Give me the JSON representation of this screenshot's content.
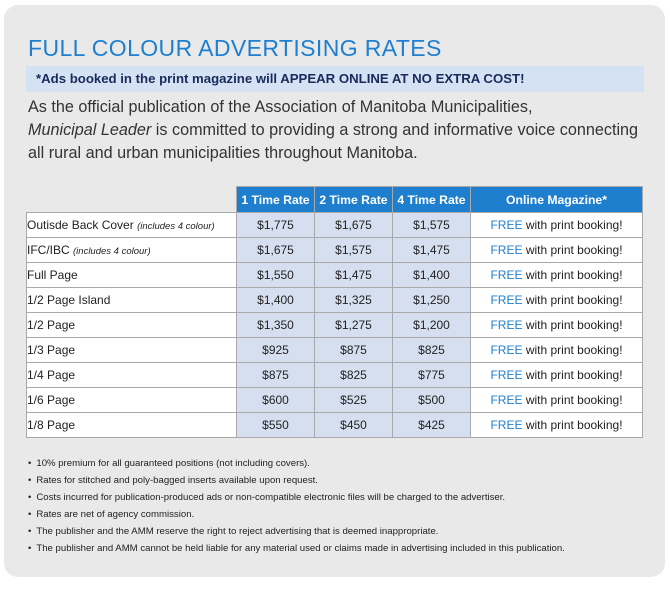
{
  "title": "FULL COLOUR ADVERTISING RATES",
  "notice": "*Ads booked in the print magazine will APPEAR ONLINE AT NO EXTRA COST!",
  "intro": {
    "before": "As the official publication of the Association of Manitoba Municipalities,",
    "italic": "Municipal Leader",
    "after": "is committed to providing a strong and informative voice connecting all rural and urban municipalities throughout Manitoba."
  },
  "table": {
    "headers": [
      "1 Time Rate",
      "2 Time Rate",
      "4 Time Rate",
      "Online Magazine*"
    ],
    "rows": [
      {
        "label": "Outisde Back Cover",
        "note": "(includes 4 colour)",
        "r1": "$1,775",
        "r2": "$1,675",
        "r4": "$1,575",
        "free": "FREE",
        "online_rest": "with print booking!"
      },
      {
        "label": "IFC/IBC",
        "note": "(includes 4 colour)",
        "r1": "$1,675",
        "r2": "$1,575",
        "r4": "$1,475",
        "free": "FREE",
        "online_rest": "with print booking!"
      },
      {
        "label": "Full Page",
        "note": "",
        "r1": "$1,550",
        "r2": "$1,475",
        "r4": "$1,400",
        "free": "FREE",
        "online_rest": "with print booking!"
      },
      {
        "label": "1/2 Page Island",
        "note": "",
        "r1": "$1,400",
        "r2": "$1,325",
        "r4": "$1,250",
        "free": "FREE",
        "online_rest": "with print booking!"
      },
      {
        "label": "1/2 Page",
        "note": "",
        "r1": "$1,350",
        "r2": "$1,275",
        "r4": "$1,200",
        "free": "FREE",
        "online_rest": "with print booking!"
      },
      {
        "label": "1/3 Page",
        "note": "",
        "r1": "$925",
        "r2": "$875",
        "r4": "$825",
        "free": "FREE",
        "online_rest": "with print booking!"
      },
      {
        "label": "1/4 Page",
        "note": "",
        "r1": "$875",
        "r2": "$825",
        "r4": "$775",
        "free": "FREE",
        "online_rest": "with print booking!"
      },
      {
        "label": "1/6 Page",
        "note": "",
        "r1": "$600",
        "r2": "$525",
        "r4": "$500",
        "free": "FREE",
        "online_rest": "with print booking!"
      },
      {
        "label": "1/8 Page",
        "note": "",
        "r1": "$550",
        "r2": "$450",
        "r4": "$425",
        "free": "FREE",
        "online_rest": "with print booking!"
      }
    ]
  },
  "notes": [
    "10% premium for all guaranteed positions (not including covers).",
    "Rates for stitched and poly-bagged inserts available upon request.",
    "Costs incurred for publication-produced ads or non-compatible electronic files will be charged to the advertiser.",
    "Rates are net of agency commission.",
    "The publisher and the AMM reserve the right to reject advertising that is deemed inappropriate.",
    "The publisher and AMM cannot be held liable for any material used or claims made in advertising included in this publication."
  ],
  "colors": {
    "accent": "#1f7fcf",
    "notice_bg": "#d4e2f4",
    "rate_cell_bg": "#d6dff0",
    "panel_bg": "#e9e9ea"
  }
}
